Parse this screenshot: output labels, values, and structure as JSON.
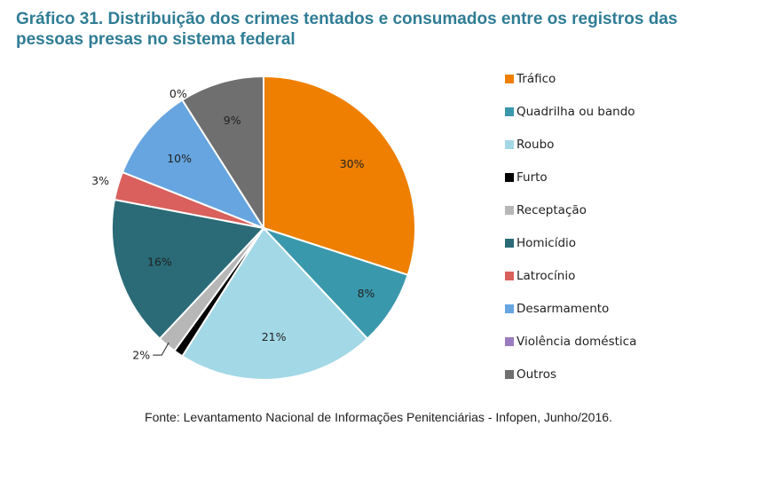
{
  "chart_data": {
    "type": "pie",
    "title": "Gráfico 31. Distribuição dos crimes tentados e consumados entre os registros das pessoas presas no sistema federal",
    "legend_position": "right",
    "start_angle_deg": 0,
    "direction": "clockwise",
    "slices": [
      {
        "label": "Tráfico",
        "value": 30.0,
        "display": "30%",
        "color": "#ee7f00"
      },
      {
        "label": "Quadrilha ou bando",
        "value": 8.0,
        "display": "8%",
        "color": "#3a98ad"
      },
      {
        "label": "Roubo",
        "value": 21.0,
        "display": "21%",
        "color": "#a3d8e6"
      },
      {
        "label": "Furto",
        "value": 1.0,
        "display": "",
        "color": "#000000"
      },
      {
        "label": "Receptação",
        "value": 2.0,
        "display": "2%",
        "color": "#b7b7b7"
      },
      {
        "label": "Homicídio",
        "value": 16.0,
        "display": "16%",
        "color": "#2a6b77"
      },
      {
        "label": "Latrocínio",
        "value": 3.0,
        "display": "3%",
        "color": "#d9605c"
      },
      {
        "label": "Desarmamento",
        "value": 10.0,
        "display": "10%",
        "color": "#66a5e0"
      },
      {
        "label": "Violência doméstica",
        "value": 0.0,
        "display": "0%",
        "color": "#9b7bc0"
      },
      {
        "label": "Outros",
        "value": 9.0,
        "display": "9%",
        "color": "#6f6f6f"
      }
    ]
  },
  "source": "Fonte: Levantamento Nacional de Informações Penitenciárias - Infopen, Junho/2016."
}
